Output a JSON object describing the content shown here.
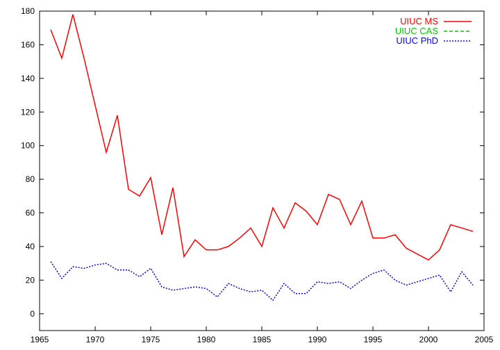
{
  "chart_data": {
    "type": "line",
    "title": "",
    "xlabel": "",
    "ylabel": "",
    "xlim": [
      1965,
      2005
    ],
    "ylim": [
      -10,
      180
    ],
    "xticks": [
      1965,
      1970,
      1975,
      1980,
      1985,
      1990,
      1995,
      2000,
      2005
    ],
    "yticks": [
      0,
      20,
      40,
      60,
      80,
      100,
      120,
      140,
      160,
      180
    ],
    "xtick_labels": [
      "1965",
      "1970",
      "1975",
      "1980",
      "1985",
      "1990",
      "1995",
      "2000",
      "2005"
    ],
    "ytick_labels": [
      "0",
      "20",
      "40",
      "60",
      "80",
      "100",
      "120",
      "140",
      "160",
      "180"
    ],
    "grid": false,
    "legend_position": "top-right",
    "series": [
      {
        "name": "UIUC MS",
        "color": "#ff0000",
        "style": "solid",
        "x": [
          1966,
          1967,
          1968,
          1969,
          1970,
          1971,
          1972,
          1973,
          1974,
          1975,
          1976,
          1977,
          1978,
          1979,
          1980,
          1981,
          1982,
          1983,
          1984,
          1985,
          1986,
          1987,
          1988,
          1989,
          1990,
          1991,
          1992,
          1993,
          1994,
          1995,
          1996,
          1997,
          1998,
          2000,
          2001,
          2002,
          2003,
          2004
        ],
        "y": [
          169,
          152,
          178,
          152,
          124,
          96,
          118,
          74,
          70,
          81,
          47,
          75,
          34,
          44,
          38,
          38,
          40,
          45,
          51,
          40,
          63,
          51,
          66,
          61,
          53,
          71,
          68,
          53,
          67,
          45,
          45,
          47,
          39,
          32,
          38,
          53,
          51,
          49
        ]
      },
      {
        "name": "UIUC CAS",
        "color": "#00cc00",
        "style": "dashed",
        "x": [],
        "y": []
      },
      {
        "name": "UIUC PhD",
        "color": "#0000ff",
        "style": "dotted",
        "x": [
          1966,
          1967,
          1968,
          1969,
          1970,
          1971,
          1972,
          1973,
          1974,
          1975,
          1976,
          1977,
          1978,
          1979,
          1980,
          1981,
          1982,
          1983,
          1984,
          1985,
          1986,
          1987,
          1988,
          1989,
          1990,
          1991,
          1992,
          1993,
          1994,
          1995,
          1996,
          1997,
          1998,
          1999,
          2000,
          2001,
          2002,
          2003,
          2004
        ],
        "y": [
          31,
          21,
          28,
          27,
          29,
          30,
          26,
          26,
          22,
          27,
          16,
          14,
          15,
          16,
          15,
          10,
          18,
          15,
          13,
          14,
          8,
          18,
          12,
          12,
          19,
          18,
          19,
          15,
          20,
          24,
          26,
          20,
          17,
          19,
          21,
          23,
          13,
          25,
          17
        ]
      }
    ]
  }
}
